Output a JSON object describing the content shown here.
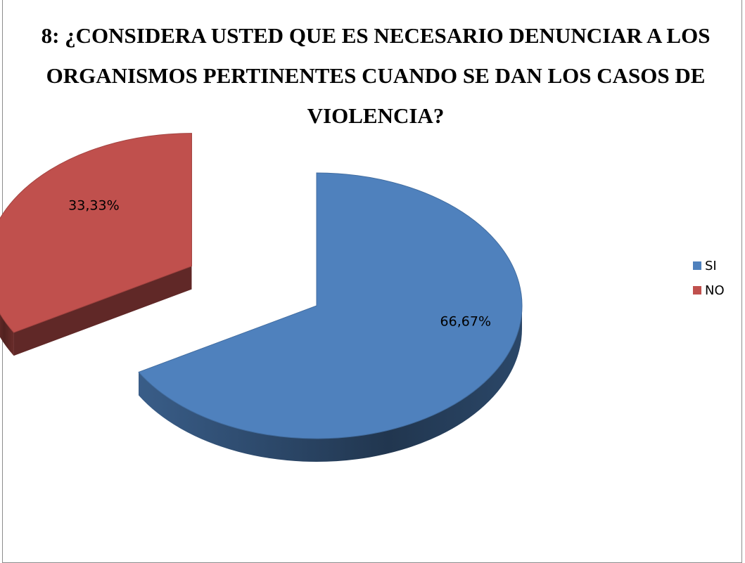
{
  "chart_data": {
    "type": "pie",
    "title": "8: ¿CONSIDERA USTED QUE ES NECESARIO DENUNCIAR A LOS ORGANISMOS PERTINENTES CUANDO SE DAN LOS CASOS DE VIOLENCIA?",
    "categories": [
      "SI",
      "NO"
    ],
    "values": [
      66.67,
      33.33
    ],
    "data_labels": [
      "66,67%",
      "33,33%"
    ],
    "colors": [
      "#4F81BD",
      "#C0504D"
    ],
    "exploded": "NO",
    "style": "3d",
    "legend_position": "right"
  }
}
